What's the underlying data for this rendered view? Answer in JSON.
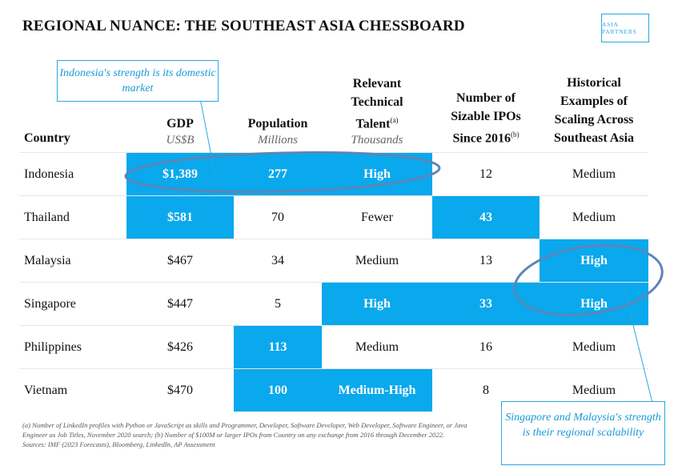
{
  "title": "REGIONAL NUANCE: THE SOUTHEAST ASIA CHESSBOARD",
  "logo_text": "ASIA PARTNERS",
  "callout_indonesia": "Indonesia's strength is its domestic market",
  "callout_regional": "Singapore and Malaysia's strength is their regional scalability",
  "columns": {
    "country": "Country",
    "gdp": "GDP",
    "gdp_unit": "US$B",
    "population": "Population",
    "population_unit": "Millions",
    "talent_line1": "Relevant",
    "talent_line2": "Technical",
    "talent_line3": "Talent",
    "talent_note": "(a)",
    "talent_unit": "Thousands",
    "ipos_line1": "Number of",
    "ipos_line2": "Sizable IPOs",
    "ipos_line3": "Since 2016",
    "ipos_note": "(b)",
    "scaling_line1": "Historical",
    "scaling_line2": "Examples of",
    "scaling_line3": "Scaling Across",
    "scaling_line4": "Southeast Asia"
  },
  "rows": [
    {
      "country": "Indonesia",
      "gdp": "$1,389",
      "population": "277",
      "talent": "High",
      "ipos": "12",
      "scaling": "Medium"
    },
    {
      "country": "Thailand",
      "gdp": "$581",
      "population": "70",
      "talent": "Fewer",
      "ipos": "43",
      "scaling": "Medium"
    },
    {
      "country": "Malaysia",
      "gdp": "$467",
      "population": "34",
      "talent": "Medium",
      "ipos": "13",
      "scaling": "High"
    },
    {
      "country": "Singapore",
      "gdp": "$447",
      "population": "5",
      "talent": "High",
      "ipos": "33",
      "scaling": "High"
    },
    {
      "country": "Philippines",
      "gdp": "$426",
      "population": "113",
      "talent": "Medium",
      "ipos": "16",
      "scaling": "Medium"
    },
    {
      "country": "Vietnam",
      "gdp": "$470",
      "population": "100",
      "talent": "Medium-High",
      "ipos": "8",
      "scaling": "Medium"
    }
  ],
  "highlighted_cells": [
    "Indonesia.gdp",
    "Indonesia.population",
    "Indonesia.talent",
    "Thailand.gdp",
    "Thailand.ipos",
    "Malaysia.scaling",
    "Singapore.talent",
    "Singapore.ipos",
    "Singapore.scaling",
    "Philippines.population",
    "Vietnam.population",
    "Vietnam.talent"
  ],
  "colors": {
    "highlight": "#0aa8ec",
    "accent": "#2aa7e0",
    "circle": "#5b86b8"
  },
  "footnote_1": "(a) Number of LinkedIn profiles with Python or JavaScript as skills and Programmer, Developer, Software Developer, Web Developer, Software Engineer, or Java Engineer as Job Titles, November 2020 search; (b) Number of $100M or larger IPOs from Country on any exchange from 2016 through December 2022.",
  "footnote_2": "Sources: IMF (2023 Forecasts), Bloomberg, LinkedIn, AP Assessment"
}
